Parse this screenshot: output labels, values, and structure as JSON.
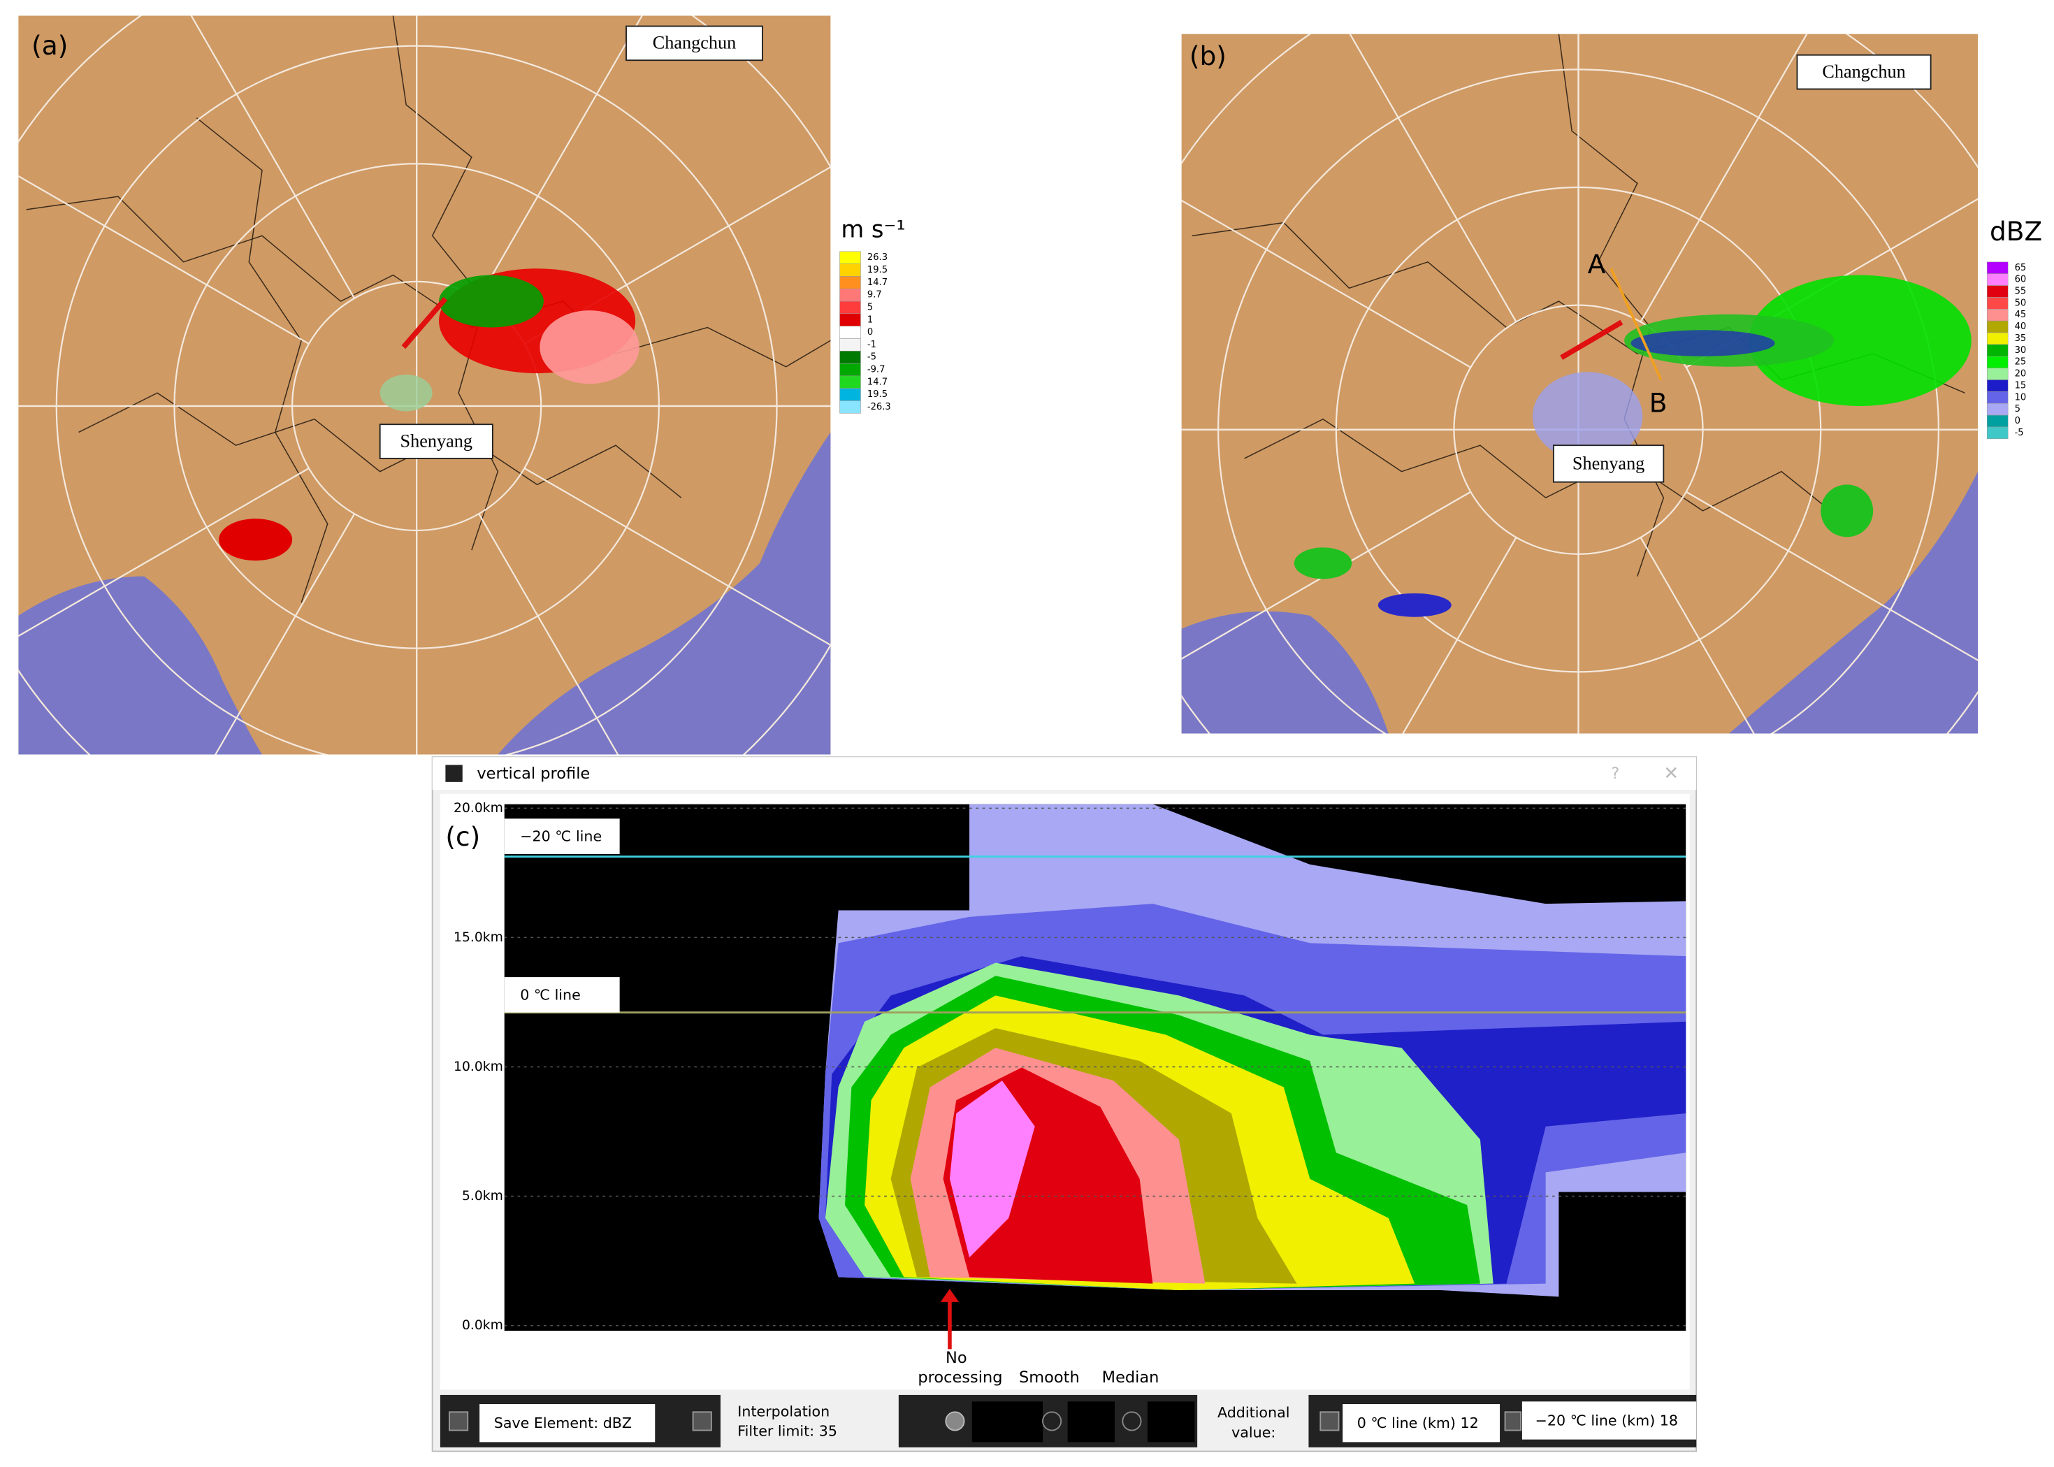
{
  "panel_a": {
    "label": "(a)",
    "cities": [
      "Changchun",
      "Shenyang"
    ],
    "legend": {
      "unit": "m s⁻¹",
      "entries": [
        {
          "label": "26.3",
          "color": "#ffff00"
        },
        {
          "label": "19.5",
          "color": "#ffd200"
        },
        {
          "label": "14.7",
          "color": "#ff9020"
        },
        {
          "label": "9.7",
          "color": "#ff7878"
        },
        {
          "label": "5",
          "color": "#ff3c3c"
        },
        {
          "label": "1",
          "color": "#e00000"
        },
        {
          "label": "0",
          "color": "#ffffff"
        },
        {
          "label": "-1",
          "color": "#f4f4f4"
        },
        {
          "label": "-5",
          "color": "#007a00"
        },
        {
          "label": "-9.7",
          "color": "#00a800"
        },
        {
          "label": "14.7",
          "color": "#20d820"
        },
        {
          "label": "19.5",
          "color": "#00b4e0"
        },
        {
          "label": "-26.3",
          "color": "#88e4ff"
        }
      ]
    }
  },
  "panel_b": {
    "label": "(b)",
    "cities": [
      "Changchun",
      "Shenyang"
    ],
    "section_points": [
      "A",
      "B"
    ],
    "legend": {
      "unit": "dBZ",
      "entries": [
        {
          "label": "65",
          "color": "#b400ff"
        },
        {
          "label": "60",
          "color": "#ff80ff"
        },
        {
          "label": "55",
          "color": "#e00010"
        },
        {
          "label": "50",
          "color": "#ff4848"
        },
        {
          "label": "45",
          "color": "#ff9090"
        },
        {
          "label": "40",
          "color": "#b0a800"
        },
        {
          "label": "35",
          "color": "#f0f000"
        },
        {
          "label": "30",
          "color": "#00b400"
        },
        {
          "label": "25",
          "color": "#00ee00"
        },
        {
          "label": "20",
          "color": "#98f098"
        },
        {
          "label": "15",
          "color": "#1c1cc8"
        },
        {
          "label": "10",
          "color": "#6464e8"
        },
        {
          "label": "5",
          "color": "#a8a8f4"
        },
        {
          "label": "0",
          "color": "#00a0a0"
        },
        {
          "label": "-5",
          "color": "#40c8c8"
        }
      ]
    }
  },
  "panel_c": {
    "window_title": "vertical profile",
    "label": "(c)",
    "y_labels": [
      "20.0km",
      "15.0km",
      "10.0km",
      "5.0km",
      "0.0km"
    ],
    "isotherm_labels": [
      "−20 ℃ line",
      "0 ℃ line"
    ],
    "filters": {
      "no_processing": [
        "No",
        "processing"
      ],
      "smooth": "Smooth",
      "median": "Median"
    },
    "toolbar": {
      "save_element": "Save Element: dBZ",
      "interpolation": [
        "Interpolation",
        "Filter limit: 35"
      ],
      "additional": [
        "Additional",
        "value:"
      ],
      "zero_line": "0 ℃ line (km) 12",
      "minus20_line": "−20 ℃ line (km) 18"
    }
  }
}
